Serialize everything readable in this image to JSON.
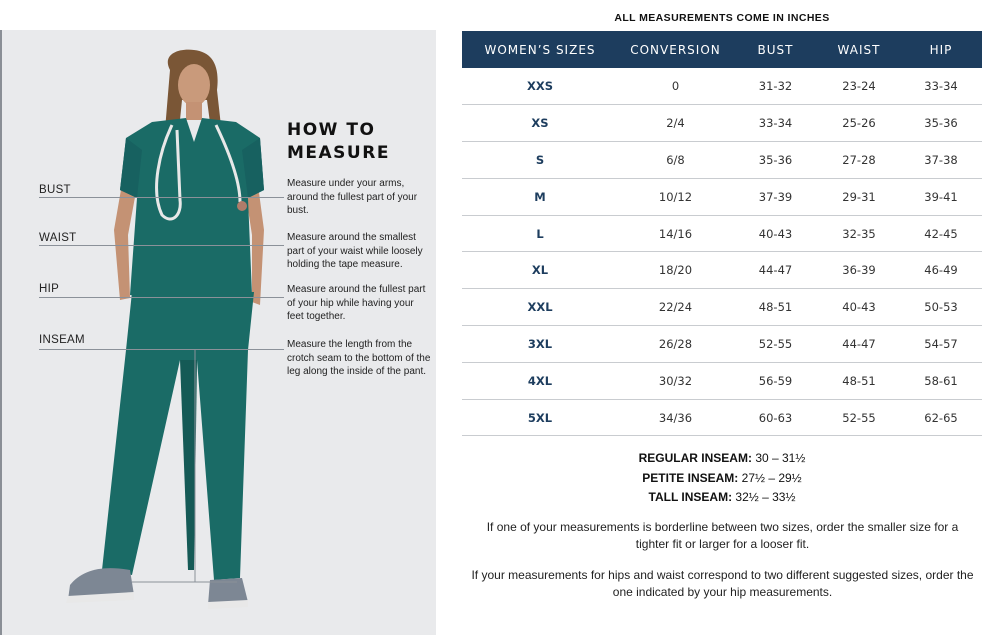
{
  "left_panel": {
    "heading": "HOW TO MEASURE",
    "measures": [
      {
        "label": "BUST",
        "desc": "Measure under your arms, around the fullest part of your bust."
      },
      {
        "label": "WAIST",
        "desc": "Measure around the smallest part of your waist while loosely holding the tape measure."
      },
      {
        "label": "HIP",
        "desc": "Measure around the fullest part of your hip while having your feet together."
      },
      {
        "label": "INSEAM",
        "desc": "Measure the length from the crotch seam to the bottom of the leg along the inside of the pant."
      }
    ]
  },
  "size_chart": {
    "title": "ALL MEASUREMENTS COME IN INCHES",
    "headers": [
      "WOMEN’S SIZES",
      "CONVERSION",
      "BUST",
      "WAIST",
      "HIP"
    ],
    "rows": [
      [
        "XXS",
        "0",
        "31-32",
        "23-24",
        "33-34"
      ],
      [
        "XS",
        "2/4",
        "33-34",
        "25-26",
        "35-36"
      ],
      [
        "S",
        "6/8",
        "35-36",
        "27-28",
        "37-38"
      ],
      [
        "M",
        "10/12",
        "37-39",
        "29-31",
        "39-41"
      ],
      [
        "L",
        "14/16",
        "40-43",
        "32-35",
        "42-45"
      ],
      [
        "XL",
        "18/20",
        "44-47",
        "36-39",
        "46-49"
      ],
      [
        "XXL",
        "22/24",
        "48-51",
        "40-43",
        "50-53"
      ],
      [
        "3XL",
        "26/28",
        "52-55",
        "44-47",
        "54-57"
      ],
      [
        "4XL",
        "30/32",
        "56-59",
        "48-51",
        "58-61"
      ],
      [
        "5XL",
        "34/36",
        "60-63",
        "52-55",
        "62-65"
      ]
    ]
  },
  "inseams": [
    {
      "label": "REGULAR INSEAM:",
      "value": "30 – 31½"
    },
    {
      "label": "PETITE INSEAM:",
      "value": "27½ – 29½"
    },
    {
      "label": "TALL INSEAM:",
      "value": "32½ – 33½"
    }
  ],
  "notes": [
    "If one of your measurements is borderline between two sizes, order the smaller size for a tighter fit or larger for a looser fit.",
    "If your measurements for hips and waist correspond to two different suggested sizes, order the one indicated by your hip measurements."
  ],
  "colors": {
    "header_bg": "#1d3d5e",
    "size_text": "#1d3d5e",
    "panel_bg": "#e9eaec",
    "scrubs": "#1a6b66"
  }
}
